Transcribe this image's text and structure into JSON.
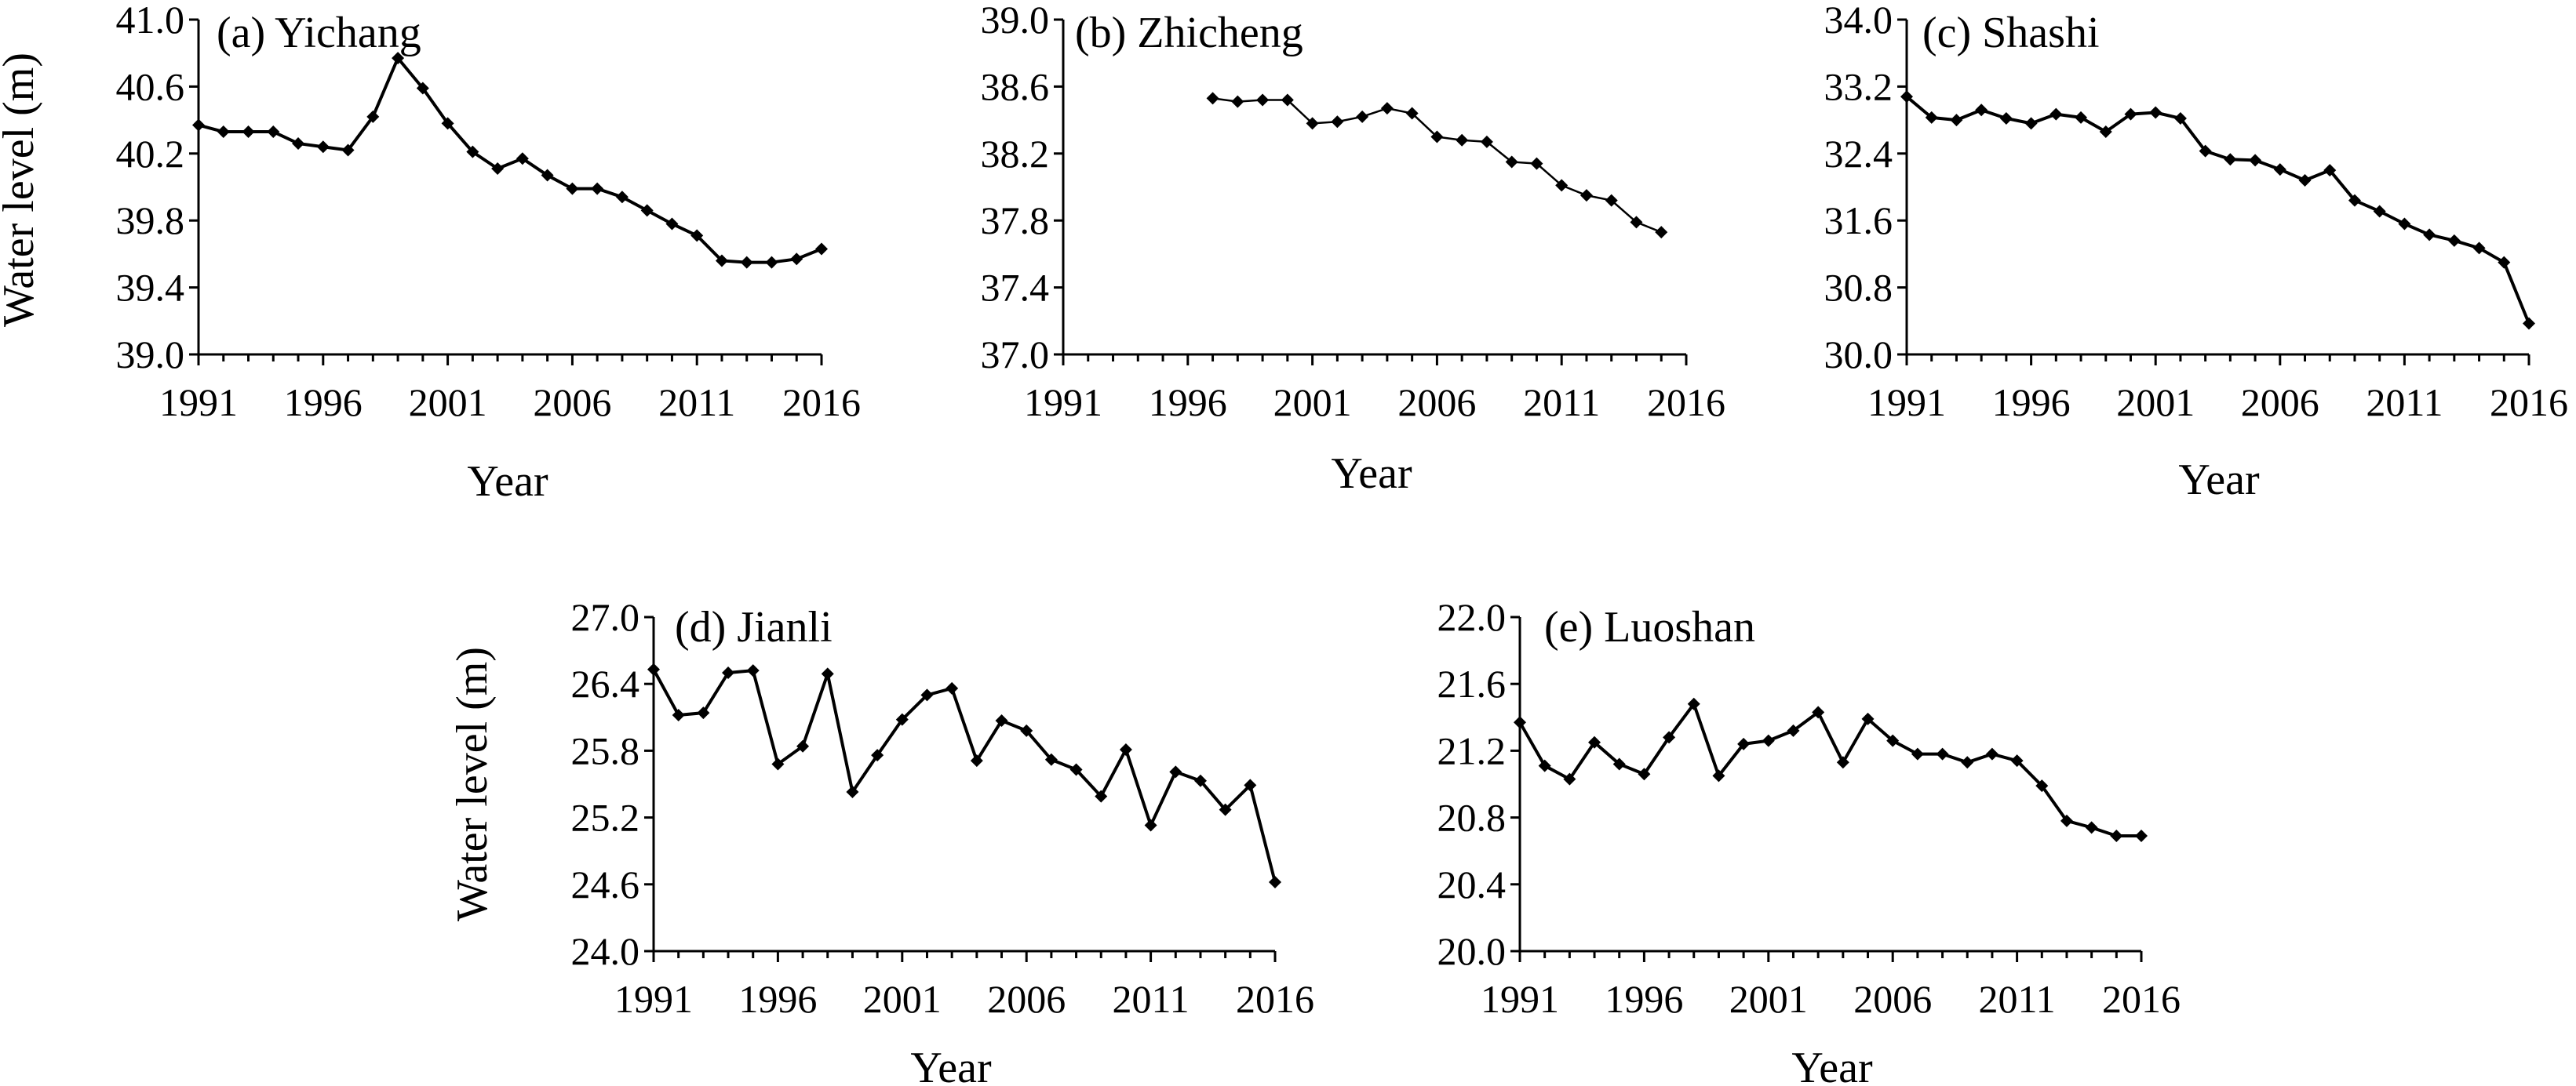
{
  "chart_data": [
    {
      "type": "line",
      "title": "(a) Yichang",
      "xlabel": "Year",
      "ylabel": "Water level (m)",
      "xlim": [
        1991,
        2016
      ],
      "ylim": [
        39.0,
        41.0
      ],
      "xticks": [
        "1991",
        "1996",
        "2001",
        "2006",
        "2011",
        "2016"
      ],
      "yticks": [
        "39.0",
        "39.4",
        "39.8",
        "40.2",
        "40.6",
        "41.0"
      ],
      "x": [
        1991,
        1992,
        1993,
        1994,
        1995,
        1996,
        1997,
        1998,
        1999,
        2000,
        2001,
        2002,
        2003,
        2004,
        2005,
        2006,
        2007,
        2008,
        2009,
        2010,
        2011,
        2012,
        2013,
        2014,
        2015,
        2016
      ],
      "values": [
        40.37,
        40.33,
        40.33,
        40.33,
        40.26,
        40.24,
        40.22,
        40.42,
        40.77,
        40.59,
        40.38,
        40.21,
        40.11,
        40.17,
        40.07,
        39.99,
        39.99,
        39.94,
        39.86,
        39.78,
        39.71,
        39.56,
        39.55,
        39.55,
        39.57,
        39.63
      ]
    },
    {
      "type": "line",
      "title": "(b) Zhicheng",
      "xlabel": "Year",
      "ylabel": "",
      "xlim": [
        1991,
        2016
      ],
      "ylim": [
        37.0,
        39.0
      ],
      "xticks": [
        "1991",
        "1996",
        "2001",
        "2006",
        "2011",
        "2016"
      ],
      "yticks": [
        "37.0",
        "37.4",
        "37.8",
        "38.2",
        "38.6",
        "39.0"
      ],
      "x": [
        1997,
        1998,
        1999,
        2000,
        2001,
        2002,
        2003,
        2004,
        2005,
        2006,
        2007,
        2008,
        2009,
        2010,
        2011,
        2012,
        2013,
        2014,
        2015
      ],
      "values": [
        38.53,
        38.51,
        38.52,
        38.52,
        38.38,
        38.39,
        38.42,
        38.47,
        38.44,
        38.3,
        38.28,
        38.27,
        38.15,
        38.14,
        38.01,
        37.95,
        37.92,
        37.79,
        37.73
      ]
    },
    {
      "type": "line",
      "title": "(c) Shashi",
      "xlabel": "Year",
      "ylabel": "",
      "xlim": [
        1991,
        2016
      ],
      "ylim": [
        30.0,
        34.0
      ],
      "xticks": [
        "1991",
        "1996",
        "2001",
        "2006",
        "2011",
        "2016"
      ],
      "yticks": [
        "30.0",
        "30.8",
        "31.6",
        "32.4",
        "33.2",
        "34.0"
      ],
      "x": [
        1991,
        1992,
        1993,
        1994,
        1995,
        1996,
        1997,
        1998,
        1999,
        2000,
        2001,
        2002,
        2003,
        2004,
        2005,
        2006,
        2007,
        2008,
        2009,
        2010,
        2011,
        2012,
        2013,
        2014,
        2015,
        2016
      ],
      "values": [
        33.08,
        32.83,
        32.8,
        32.92,
        32.82,
        32.76,
        32.87,
        32.83,
        32.66,
        32.87,
        32.89,
        32.82,
        32.43,
        32.33,
        32.32,
        32.21,
        32.08,
        32.2,
        31.84,
        31.71,
        31.56,
        31.43,
        31.36,
        31.27,
        31.1,
        30.37
      ]
    },
    {
      "type": "line",
      "title": "(d) Jianli",
      "xlabel": "Year",
      "ylabel": "Water level (m)",
      "xlim": [
        1991,
        2016
      ],
      "ylim": [
        24.0,
        27.0
      ],
      "xticks": [
        "1991",
        "1996",
        "2001",
        "2006",
        "2011",
        "2016"
      ],
      "yticks": [
        "24.0",
        "24.6",
        "25.2",
        "25.8",
        "26.4",
        "27.0"
      ],
      "x": [
        1991,
        1992,
        1993,
        1994,
        1995,
        1996,
        1997,
        1998,
        1999,
        2000,
        2001,
        2002,
        2003,
        2004,
        2005,
        2006,
        2007,
        2008,
        2009,
        2010,
        2011,
        2012,
        2013,
        2014,
        2015,
        2016
      ],
      "values": [
        26.53,
        26.12,
        26.14,
        26.5,
        26.52,
        25.68,
        25.84,
        26.49,
        25.43,
        25.76,
        26.08,
        26.3,
        26.36,
        25.71,
        26.07,
        25.98,
        25.72,
        25.63,
        25.39,
        25.81,
        25.13,
        25.61,
        25.53,
        25.27,
        25.49,
        24.62
      ]
    },
    {
      "type": "line",
      "title": "(e) Luoshan",
      "xlabel": "Year",
      "ylabel": "",
      "xlim": [
        1991,
        2016
      ],
      "ylim": [
        20.0,
        22.0
      ],
      "xticks": [
        "1991",
        "1996",
        "2001",
        "2006",
        "2011",
        "2016"
      ],
      "yticks": [
        "20.0",
        "20.4",
        "20.8",
        "21.2",
        "21.6",
        "22.0"
      ],
      "x": [
        1991,
        1992,
        1993,
        1994,
        1995,
        1996,
        1997,
        1998,
        1999,
        2000,
        2001,
        2002,
        2003,
        2004,
        2005,
        2006,
        2007,
        2008,
        2009,
        2010,
        2011,
        2012,
        2013,
        2014,
        2015,
        2016
      ],
      "values": [
        21.37,
        21.11,
        21.03,
        21.25,
        21.12,
        21.06,
        21.28,
        21.48,
        21.05,
        21.24,
        21.26,
        21.32,
        21.43,
        21.13,
        21.39,
        21.26,
        21.18,
        21.18,
        21.13,
        21.18,
        21.14,
        20.99,
        20.78,
        20.74,
        20.69,
        20.69
      ]
    }
  ]
}
